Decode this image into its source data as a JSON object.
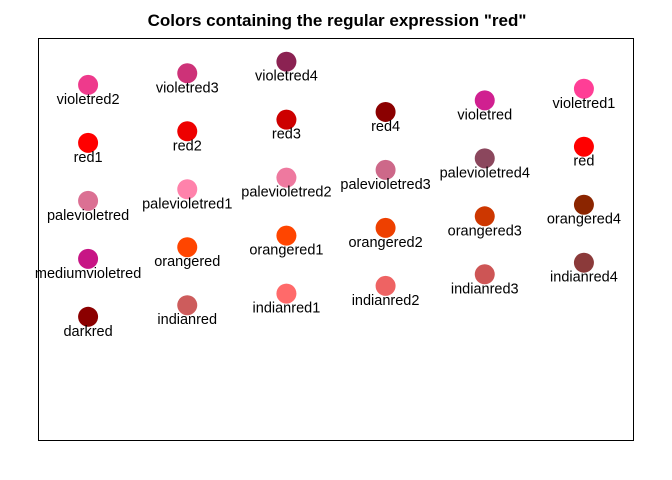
{
  "chart_data": {
    "type": "scatter",
    "title": "Colors containing the regular expression \"red\"",
    "xlabel": "",
    "ylabel": "",
    "xlim": [
      0.5,
      6.5
    ],
    "ylim": [
      0.4,
      5.6
    ],
    "axes_visible": false,
    "grid": false,
    "legend": "none",
    "points": [
      {
        "label": "violetred2",
        "color": "#EE3A8C",
        "x": 1,
        "y": 5.0
      },
      {
        "label": "violetred3",
        "color": "#CD3278",
        "x": 2,
        "y": 5.15
      },
      {
        "label": "violetred4",
        "color": "#8B2252",
        "x": 3,
        "y": 5.3
      },
      {
        "label": "red4",
        "color": "#8B0000",
        "x": 4,
        "y": 4.65
      },
      {
        "label": "violetred",
        "color": "#D02090",
        "x": 5,
        "y": 4.8
      },
      {
        "label": "violetred1",
        "color": "#FF3E96",
        "x": 6,
        "y": 4.95
      },
      {
        "label": "red1",
        "color": "#FF0000",
        "x": 1,
        "y": 4.25
      },
      {
        "label": "red2",
        "color": "#EE0000",
        "x": 2,
        "y": 4.4
      },
      {
        "label": "red3",
        "color": "#CD0000",
        "x": 3,
        "y": 4.55
      },
      {
        "label": "palevioletred3",
        "color": "#CD6889",
        "x": 4,
        "y": 3.9
      },
      {
        "label": "palevioletred4",
        "color": "#8B475D",
        "x": 5,
        "y": 4.05
      },
      {
        "label": "red",
        "color": "#FF0000",
        "x": 6,
        "y": 4.2
      },
      {
        "label": "palevioletred",
        "color": "#DB7093",
        "x": 1,
        "y": 3.5
      },
      {
        "label": "palevioletred1",
        "color": "#FF82AB",
        "x": 2,
        "y": 3.65
      },
      {
        "label": "palevioletred2",
        "color": "#EE799F",
        "x": 3,
        "y": 3.8
      },
      {
        "label": "orangered2",
        "color": "#EE4000",
        "x": 4,
        "y": 3.15
      },
      {
        "label": "orangered3",
        "color": "#CD3700",
        "x": 5,
        "y": 3.3
      },
      {
        "label": "orangered4",
        "color": "#8B2500",
        "x": 6,
        "y": 3.45
      },
      {
        "label": "mediumvioletred",
        "color": "#C71585",
        "x": 1,
        "y": 2.75
      },
      {
        "label": "orangered",
        "color": "#FF4500",
        "x": 2,
        "y": 2.9
      },
      {
        "label": "orangered1",
        "color": "#FF4500",
        "x": 3,
        "y": 3.05
      },
      {
        "label": "indianred2",
        "color": "#EE6363",
        "x": 4,
        "y": 2.4
      },
      {
        "label": "indianred3",
        "color": "#CD5555",
        "x": 5,
        "y": 2.55
      },
      {
        "label": "indianred4",
        "color": "#8B3A3A",
        "x": 6,
        "y": 2.7
      },
      {
        "label": "darkred",
        "color": "#8B0000",
        "x": 1,
        "y": 2.0
      },
      {
        "label": "indianred",
        "color": "#CD5C5C",
        "x": 2,
        "y": 2.15
      },
      {
        "label": "indianred1",
        "color": "#FF6A6A",
        "x": 3,
        "y": 2.3
      }
    ]
  }
}
